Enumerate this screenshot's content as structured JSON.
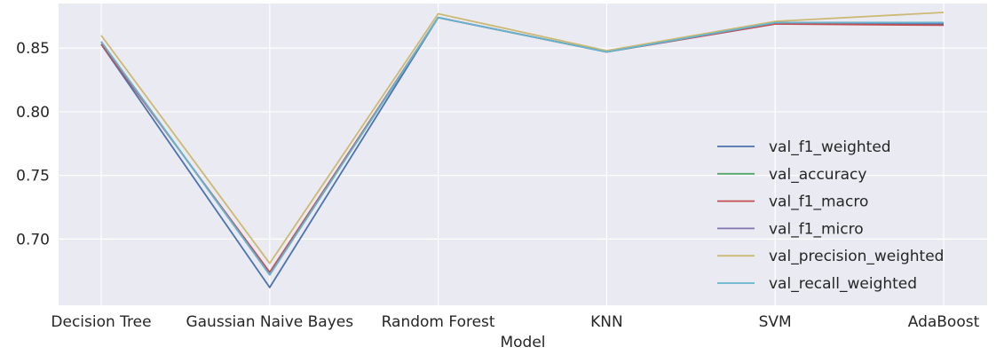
{
  "chart_data": {
    "type": "line",
    "title": "",
    "xlabel": "Model",
    "ylabel": "",
    "categories": [
      "Decision Tree",
      "Gaussian Naive Bayes",
      "Random Forest",
      "KNN",
      "SVM",
      "AdaBoost"
    ],
    "ylim": [
      0.648,
      0.885
    ],
    "yticks": [
      0.7,
      0.75,
      0.8,
      0.85
    ],
    "grid": true,
    "legend_position": "lower-right",
    "background": "#eaeaf2",
    "series": [
      {
        "name": "val_f1_weighted",
        "color": "#4c72b0",
        "values": [
          0.853,
          0.662,
          0.874,
          0.847,
          0.869,
          0.869
        ]
      },
      {
        "name": "val_accuracy",
        "color": "#55a868",
        "values": [
          0.855,
          0.672,
          0.874,
          0.847,
          0.87,
          0.87
        ]
      },
      {
        "name": "val_f1_macro",
        "color": "#c44e52",
        "values": [
          0.853,
          0.674,
          0.874,
          0.847,
          0.869,
          0.868
        ]
      },
      {
        "name": "val_f1_micro",
        "color": "#8172b2",
        "values": [
          0.855,
          0.672,
          0.874,
          0.847,
          0.87,
          0.87
        ]
      },
      {
        "name": "val_precision_weighted",
        "color": "#ccb974",
        "values": [
          0.86,
          0.681,
          0.877,
          0.848,
          0.871,
          0.878
        ]
      },
      {
        "name": "val_recall_weighted",
        "color": "#64b5cd",
        "values": [
          0.855,
          0.672,
          0.874,
          0.847,
          0.87,
          0.87
        ]
      }
    ]
  }
}
